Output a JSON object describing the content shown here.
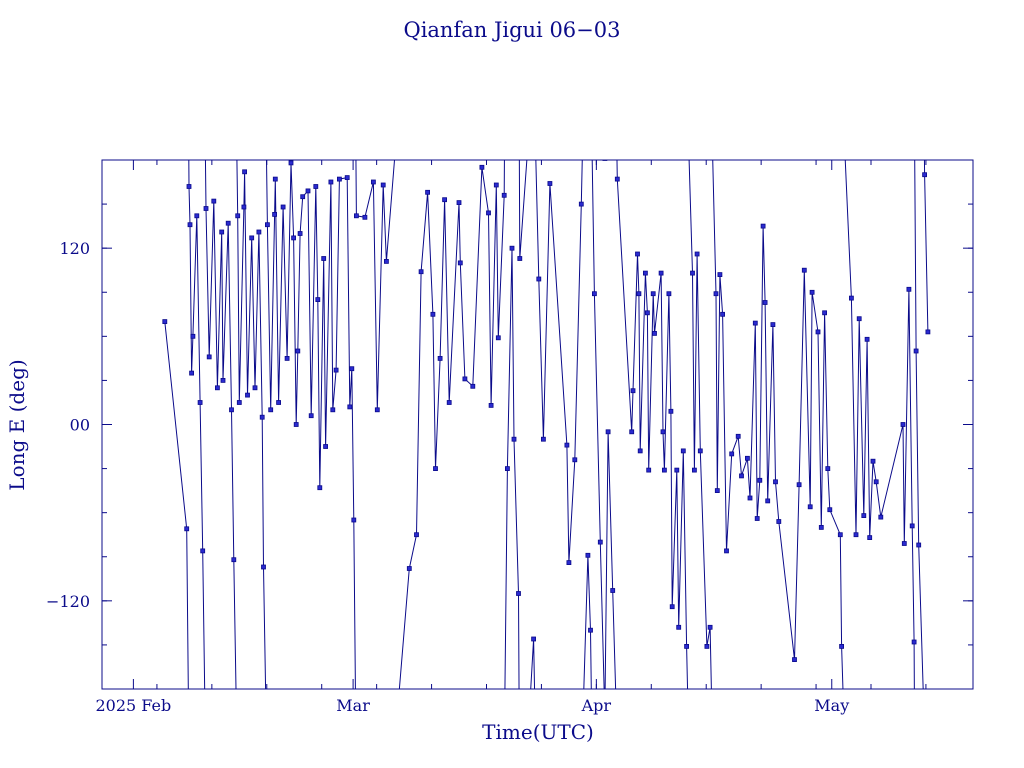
{
  "chart_data": {
    "type": "line",
    "title": "Qianfan Jigui 06−03",
    "xlabel": "Time(UTC)",
    "ylabel": "Long E (deg)",
    "x_tick_labels": [
      {
        "label": "2025 Feb",
        "date": "2025-02-01"
      },
      {
        "label": "Mar",
        "date": "2025-03-01"
      },
      {
        "label": "Apr",
        "date": "2025-04-01"
      },
      {
        "label": "May",
        "date": "2025-05-01"
      }
    ],
    "y_tick_labels": [
      {
        "label": "120",
        "value": 120
      },
      {
        "label": "00",
        "value": 0
      },
      {
        "label": "−120",
        "value": -120
      }
    ],
    "xlim": [
      "2025-01-28",
      "2025-05-19"
    ],
    "ylim": [
      -180,
      180
    ],
    "grid": false,
    "series": [
      {
        "color": "#0b0b8a",
        "points": [
          [
            "2025-02-05T00:00",
            70
          ],
          [
            "2025-02-07T19:00",
            -71
          ],
          [
            "2025-02-08T02:00",
            162
          ],
          [
            "2025-02-08T05:00",
            136
          ],
          [
            "2025-02-08T10:00",
            35
          ],
          [
            "2025-02-08T14:00",
            60
          ],
          [
            "2025-02-09T02:00",
            142
          ],
          [
            "2025-02-09T12:00",
            15
          ],
          [
            "2025-02-09T20:00",
            -86
          ],
          [
            "2025-02-10T06:00",
            147
          ],
          [
            "2025-02-10T16:00",
            46
          ],
          [
            "2025-02-11T06:00",
            152
          ],
          [
            "2025-02-11T17:00",
            25
          ],
          [
            "2025-02-12T06:00",
            131
          ],
          [
            "2025-02-12T10:00",
            30
          ],
          [
            "2025-02-13T02:00",
            137
          ],
          [
            "2025-02-13T12:00",
            10
          ],
          [
            "2025-02-13T19:00",
            -92
          ],
          [
            "2025-02-14T07:00",
            142
          ],
          [
            "2025-02-14T12:00",
            15
          ],
          [
            "2025-02-15T02:00",
            148
          ],
          [
            "2025-02-15T04:00",
            172
          ],
          [
            "2025-02-15T13:00",
            20
          ],
          [
            "2025-02-16T02:00",
            127
          ],
          [
            "2025-02-16T12:00",
            25
          ],
          [
            "2025-02-17T00:00",
            131
          ],
          [
            "2025-02-17T10:00",
            5
          ],
          [
            "2025-02-17T14:00",
            -97
          ],
          [
            "2025-02-18T02:00",
            136
          ],
          [
            "2025-02-18T12:00",
            10
          ],
          [
            "2025-02-19T00:00",
            143
          ],
          [
            "2025-02-19T02:00",
            167
          ],
          [
            "2025-02-19T12:00",
            15
          ],
          [
            "2025-02-20T02:00",
            148
          ],
          [
            "2025-02-20T14:00",
            45
          ],
          [
            "2025-02-21T02:00",
            178
          ],
          [
            "2025-02-21T10:00",
            127
          ],
          [
            "2025-02-21T18:00",
            0
          ],
          [
            "2025-02-21T23:00",
            50
          ],
          [
            "2025-02-22T06:00",
            130
          ],
          [
            "2025-02-22T14:00",
            155
          ],
          [
            "2025-02-23T06:00",
            159
          ],
          [
            "2025-02-23T16:00",
            6
          ],
          [
            "2025-02-24T06:00",
            162
          ],
          [
            "2025-02-24T12:00",
            85
          ],
          [
            "2025-02-24T18:00",
            -43
          ],
          [
            "2025-02-25T06:00",
            113
          ],
          [
            "2025-02-25T12:00",
            -15
          ],
          [
            "2025-02-26T04:00",
            165
          ],
          [
            "2025-02-26T10:00",
            10
          ],
          [
            "2025-02-26T20:00",
            37
          ],
          [
            "2025-02-27T06:00",
            167
          ],
          [
            "2025-02-28T06:00",
            168
          ],
          [
            "2025-02-28T14:00",
            12
          ],
          [
            "2025-02-28T20:00",
            38
          ],
          [
            "2025-03-01T02:00",
            -65
          ],
          [
            "2025-03-01T10:00",
            142
          ],
          [
            "2025-03-02T12:00",
            141
          ],
          [
            "2025-03-03T14:00",
            165
          ],
          [
            "2025-03-04T02:00",
            10
          ],
          [
            "2025-03-04T20:00",
            163
          ],
          [
            "2025-03-05T06:00",
            111
          ],
          [
            "2025-03-08T04:00",
            -98
          ],
          [
            "2025-03-09T02:00",
            -75
          ],
          [
            "2025-03-09T16:00",
            104
          ],
          [
            "2025-03-10T12:00",
            158
          ],
          [
            "2025-03-11T04:00",
            75
          ],
          [
            "2025-03-11T12:00",
            -30
          ],
          [
            "2025-03-12T02:00",
            45
          ],
          [
            "2025-03-12T16:00",
            153
          ],
          [
            "2025-03-13T06:00",
            15
          ],
          [
            "2025-03-14T12:00",
            151
          ],
          [
            "2025-03-14T16:00",
            110
          ],
          [
            "2025-03-15T06:00",
            31
          ],
          [
            "2025-03-16T06:00",
            26
          ],
          [
            "2025-03-17T10:00",
            175
          ],
          [
            "2025-03-18T06:00",
            144
          ],
          [
            "2025-03-18T14:00",
            13
          ],
          [
            "2025-03-19T06:00",
            163
          ],
          [
            "2025-03-19T12:00",
            59
          ],
          [
            "2025-03-20T06:00",
            156
          ],
          [
            "2025-03-20T16:00",
            -30
          ],
          [
            "2025-03-21T06:00",
            120
          ],
          [
            "2025-03-21T12:00",
            -10
          ],
          [
            "2025-03-22T02:00",
            -115
          ],
          [
            "2025-03-22T06:00",
            113
          ],
          [
            "2025-03-24T00:00",
            -146
          ],
          [
            "2025-03-24T16:00",
            99
          ],
          [
            "2025-03-25T06:00",
            -10
          ],
          [
            "2025-03-26T02:00",
            164
          ],
          [
            "2025-03-28T06:00",
            -14
          ],
          [
            "2025-03-28T12:00",
            -94
          ],
          [
            "2025-03-29T06:00",
            -24
          ],
          [
            "2025-03-30T02:00",
            150
          ],
          [
            "2025-03-30T22:00",
            -89
          ],
          [
            "2025-03-31T06:00",
            -140
          ],
          [
            "2025-03-31T18:00",
            89
          ],
          [
            "2025-04-01T12:00",
            -80
          ],
          [
            "2025-04-02T02:00",
            181
          ],
          [
            "2025-04-02T12:00",
            -5
          ],
          [
            "2025-04-03T02:00",
            -113
          ],
          [
            "2025-04-03T16:00",
            167
          ],
          [
            "2025-04-05T12:00",
            -5
          ],
          [
            "2025-04-05T16:00",
            23
          ],
          [
            "2025-04-06T06:00",
            116
          ],
          [
            "2025-04-06T10:00",
            89
          ],
          [
            "2025-04-06T14:00",
            -18
          ],
          [
            "2025-04-07T06:00",
            103
          ],
          [
            "2025-04-07T12:00",
            76
          ],
          [
            "2025-04-07T16:00",
            -31
          ],
          [
            "2025-04-08T06:00",
            89
          ],
          [
            "2025-04-08T10:00",
            62
          ],
          [
            "2025-04-09T06:00",
            103
          ],
          [
            "2025-04-09T12:00",
            -5
          ],
          [
            "2025-04-09T16:00",
            -31
          ],
          [
            "2025-04-10T06:00",
            89
          ],
          [
            "2025-04-10T12:00",
            9
          ],
          [
            "2025-04-10T16:00",
            -124
          ],
          [
            "2025-04-11T06:00",
            -31
          ],
          [
            "2025-04-11T12:00",
            -138
          ],
          [
            "2025-04-12T02:00",
            -18
          ],
          [
            "2025-04-12T12:00",
            -151
          ],
          [
            "2025-04-13T06:00",
            103
          ],
          [
            "2025-04-13T12:00",
            -31
          ],
          [
            "2025-04-13T20:00",
            116
          ],
          [
            "2025-04-14T06:00",
            -18
          ],
          [
            "2025-04-15T02:00",
            -151
          ],
          [
            "2025-04-15T12:00",
            -138
          ],
          [
            "2025-04-16T06:00",
            89
          ],
          [
            "2025-04-16T10:00",
            -45
          ],
          [
            "2025-04-16T18:00",
            102
          ],
          [
            "2025-04-17T02:00",
            75
          ],
          [
            "2025-04-17T14:00",
            -86
          ],
          [
            "2025-04-18T06:00",
            -20
          ],
          [
            "2025-04-19T02:00",
            -8
          ],
          [
            "2025-04-19T12:00",
            -35
          ],
          [
            "2025-04-20T06:00",
            -23
          ],
          [
            "2025-04-20T14:00",
            -50
          ],
          [
            "2025-04-21T06:00",
            69
          ],
          [
            "2025-04-21T12:00",
            -64
          ],
          [
            "2025-04-21T20:00",
            -38
          ],
          [
            "2025-04-22T06:00",
            135
          ],
          [
            "2025-04-22T12:00",
            83
          ],
          [
            "2025-04-22T20:00",
            -52
          ],
          [
            "2025-04-23T12:00",
            68
          ],
          [
            "2025-04-23T20:00",
            -39
          ],
          [
            "2025-04-24T06:00",
            -66
          ],
          [
            "2025-04-26T06:00",
            -160
          ],
          [
            "2025-04-26T20:00",
            -41
          ],
          [
            "2025-04-27T12:00",
            105
          ],
          [
            "2025-04-28T06:00",
            -56
          ],
          [
            "2025-04-28T12:00",
            90
          ],
          [
            "2025-04-29T06:00",
            63
          ],
          [
            "2025-04-29T16:00",
            -70
          ],
          [
            "2025-04-30T02:00",
            76
          ],
          [
            "2025-04-30T12:00",
            -30
          ],
          [
            "2025-04-30T18:00",
            -58
          ],
          [
            "2025-05-02T02:00",
            -75
          ],
          [
            "2025-05-02T06:00",
            -151
          ],
          [
            "2025-05-03T12:00",
            86
          ],
          [
            "2025-05-04T02:00",
            -75
          ],
          [
            "2025-05-04T12:00",
            72
          ],
          [
            "2025-05-05T02:00",
            -62
          ],
          [
            "2025-05-05T12:00",
            58
          ],
          [
            "2025-05-05T20:00",
            -77
          ],
          [
            "2025-05-06T06:00",
            -25
          ],
          [
            "2025-05-06T16:00",
            -39
          ],
          [
            "2025-05-07T06:00",
            -63
          ],
          [
            "2025-05-10T02:00",
            0
          ],
          [
            "2025-05-10T06:00",
            -81
          ],
          [
            "2025-05-10T20:00",
            92
          ],
          [
            "2025-05-11T06:00",
            -69
          ],
          [
            "2025-05-11T12:00",
            -148
          ],
          [
            "2025-05-11T18:00",
            50
          ],
          [
            "2025-05-12T02:00",
            -82
          ],
          [
            "2025-05-12T20:00",
            170
          ],
          [
            "2025-05-13T06:00",
            63
          ]
        ]
      }
    ]
  }
}
